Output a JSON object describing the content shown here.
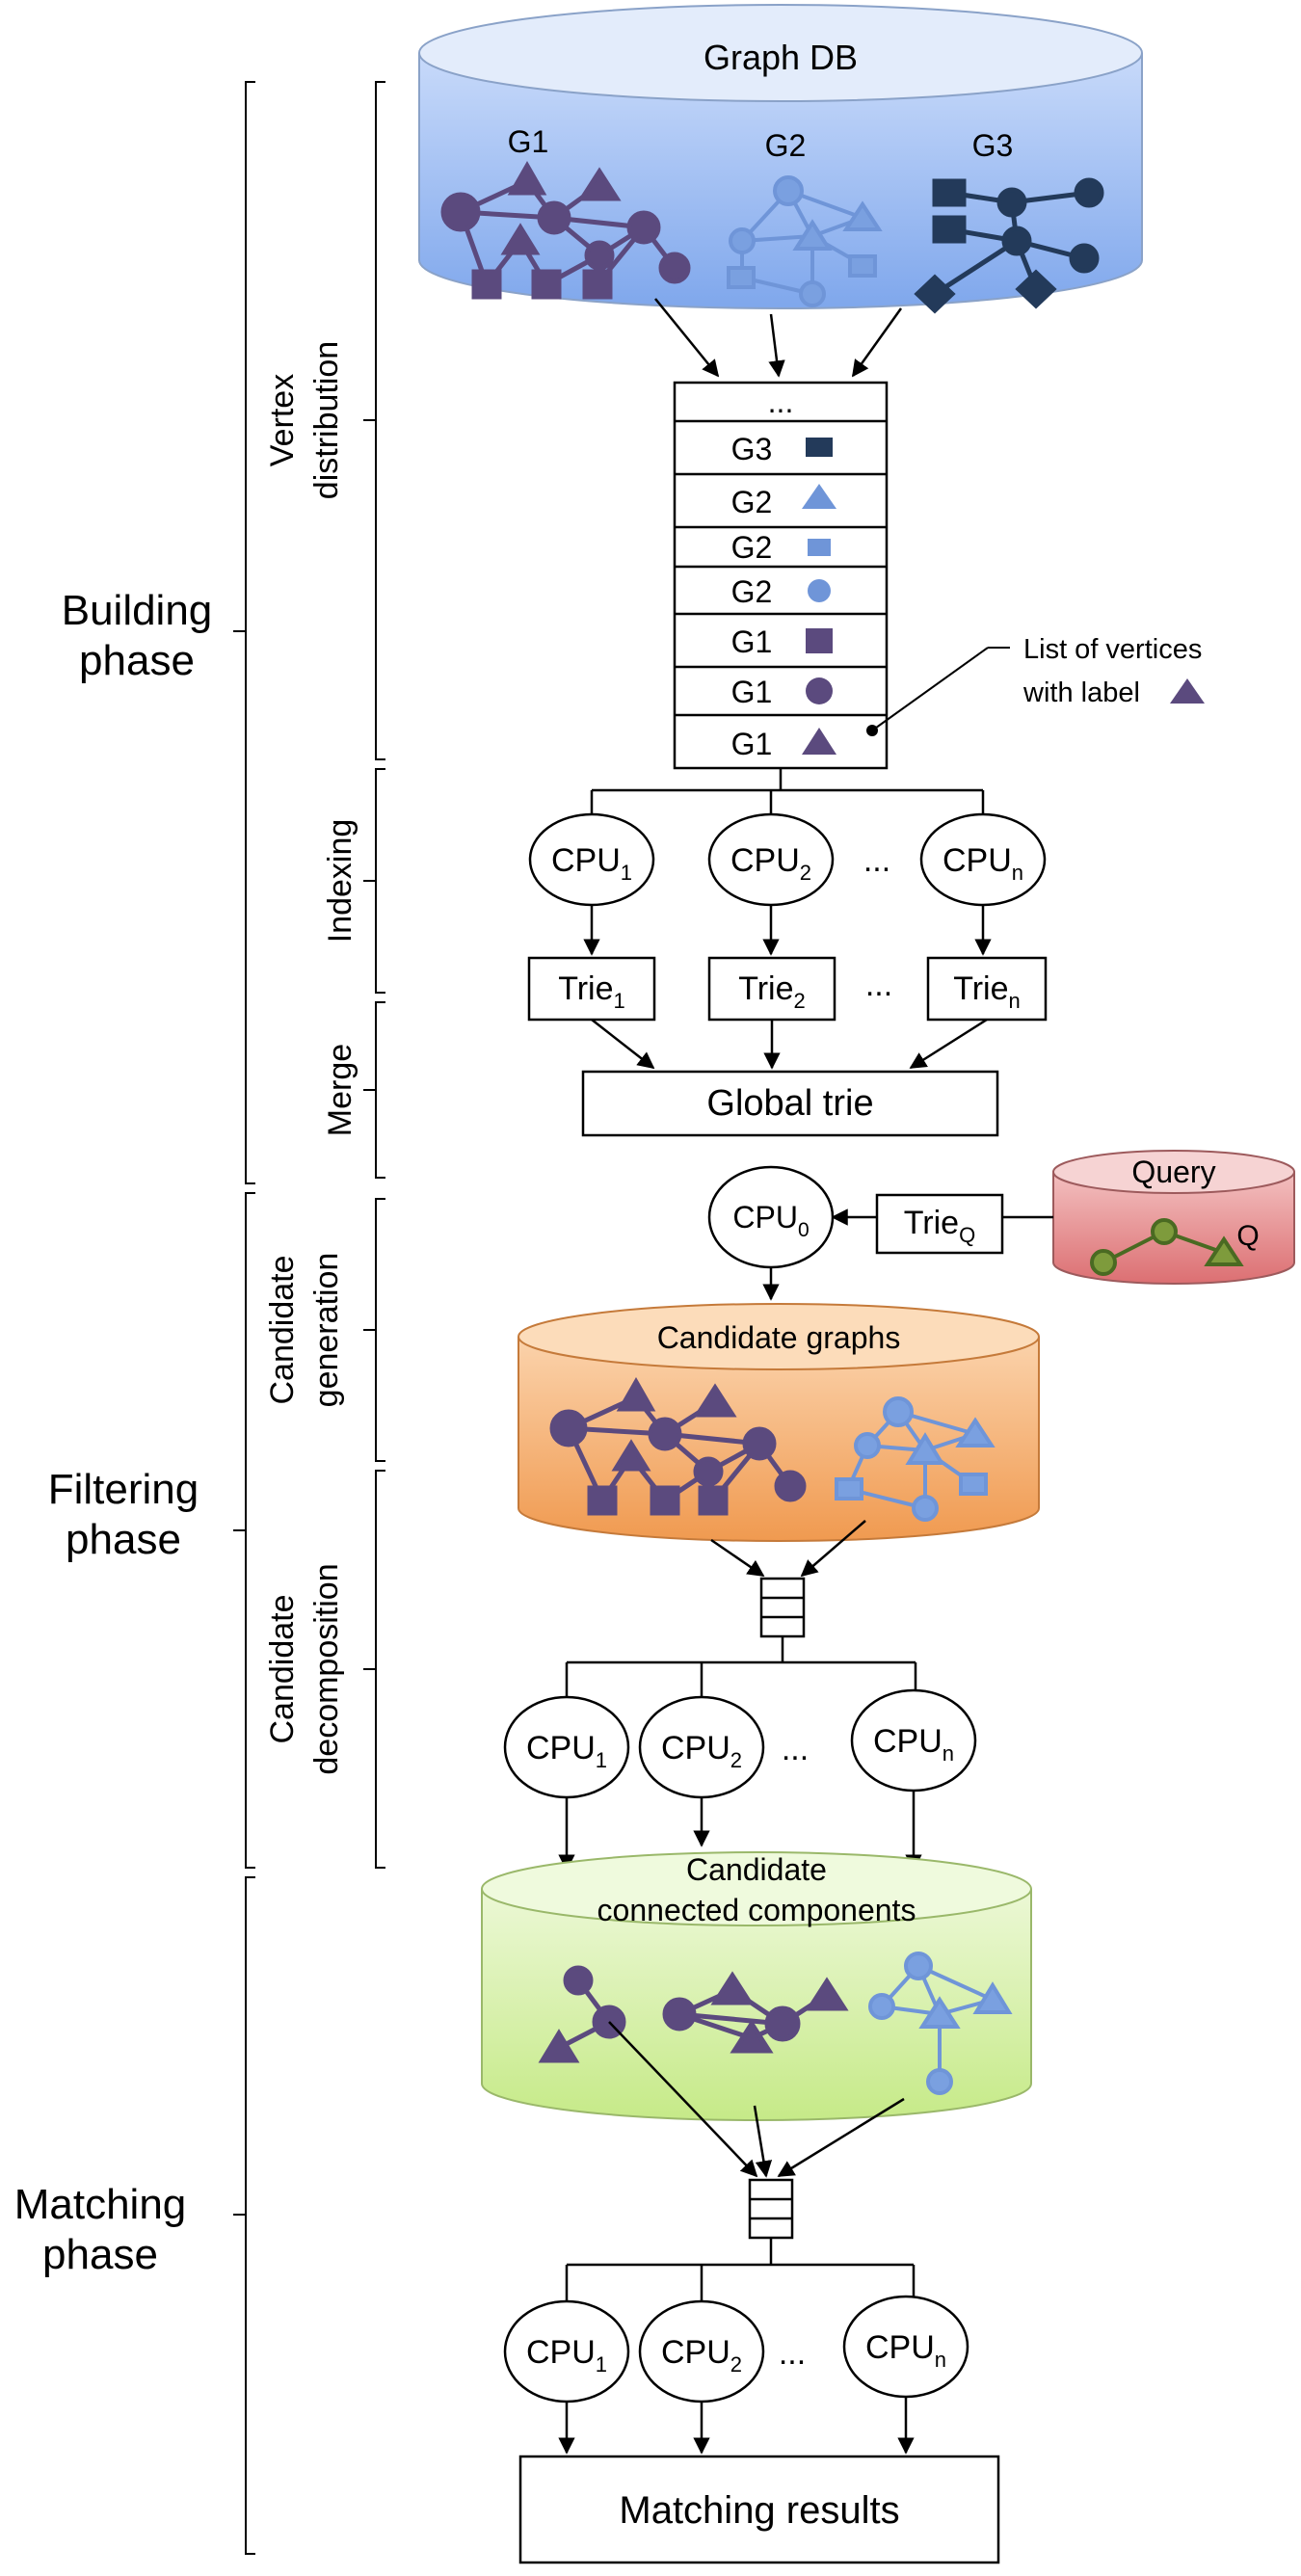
{
  "phases": {
    "building": [
      "Building",
      "phase"
    ],
    "filtering": [
      "Filtering",
      "phase"
    ],
    "matching": [
      "Matching",
      "phase"
    ]
  },
  "steps": {
    "vertex_distribution": [
      "Vertex",
      "distribution"
    ],
    "indexing": "Indexing",
    "merge": "Merge",
    "candidate_generation": [
      "Candidate",
      "generation"
    ],
    "candidate_decomposition": [
      "Candidate",
      "decomposition"
    ]
  },
  "graph_db": {
    "title": "Graph DB",
    "graphs": [
      "G1",
      "G2",
      "G3"
    ]
  },
  "vertex_list": {
    "ellipsis": "...",
    "rows": [
      "G3",
      "G2",
      "G2",
      "G2",
      "G1",
      "G1",
      "G1"
    ],
    "row_shapes": [
      "square-dark",
      "triangle-blue",
      "square-blue",
      "circle-blue",
      "square-purple",
      "circle-purple",
      "triangle-purple"
    ],
    "annotation": [
      "List of vertices",
      "with label"
    ]
  },
  "indexing": {
    "cpus": [
      {
        "base": "CPU",
        "sub": "1"
      },
      {
        "base": "CPU",
        "sub": "2"
      },
      {
        "base": "CPU",
        "sub": "n"
      }
    ],
    "tries": [
      {
        "base": "Trie",
        "sub": "1"
      },
      {
        "base": "Trie",
        "sub": "2"
      },
      {
        "base": "Trie",
        "sub": "n"
      }
    ],
    "ellipsis": "..."
  },
  "global_trie": "Global trie",
  "query": {
    "title": "Query",
    "label": "Q",
    "trie": {
      "base": "Trie",
      "sub": "Q"
    }
  },
  "cpu0": {
    "base": "CPU",
    "sub": "0"
  },
  "candidate_graphs": "Candidate graphs",
  "decomposition": {
    "cpus": [
      {
        "base": "CPU",
        "sub": "1"
      },
      {
        "base": "CPU",
        "sub": "2"
      },
      {
        "base": "CPU",
        "sub": "n"
      }
    ],
    "ellipsis": "..."
  },
  "components": [
    "Candidate",
    "connected components"
  ],
  "matching": {
    "cpus": [
      {
        "base": "CPU",
        "sub": "1"
      },
      {
        "base": "CPU",
        "sub": "2"
      },
      {
        "base": "CPU",
        "sub": "n"
      }
    ],
    "ellipsis": "..."
  },
  "matching_results": "Matching results",
  "colors": {
    "purple": "#5b4a7e",
    "blue": "#6f95d8",
    "dark": "#233a5a",
    "green": "#7e9b3c",
    "db_top": "#e4edfc",
    "db_body": "#8fb4f0",
    "query_body": "#e08082",
    "cand_body": "#f3a35d",
    "comp_body": "#d0ee9a"
  }
}
